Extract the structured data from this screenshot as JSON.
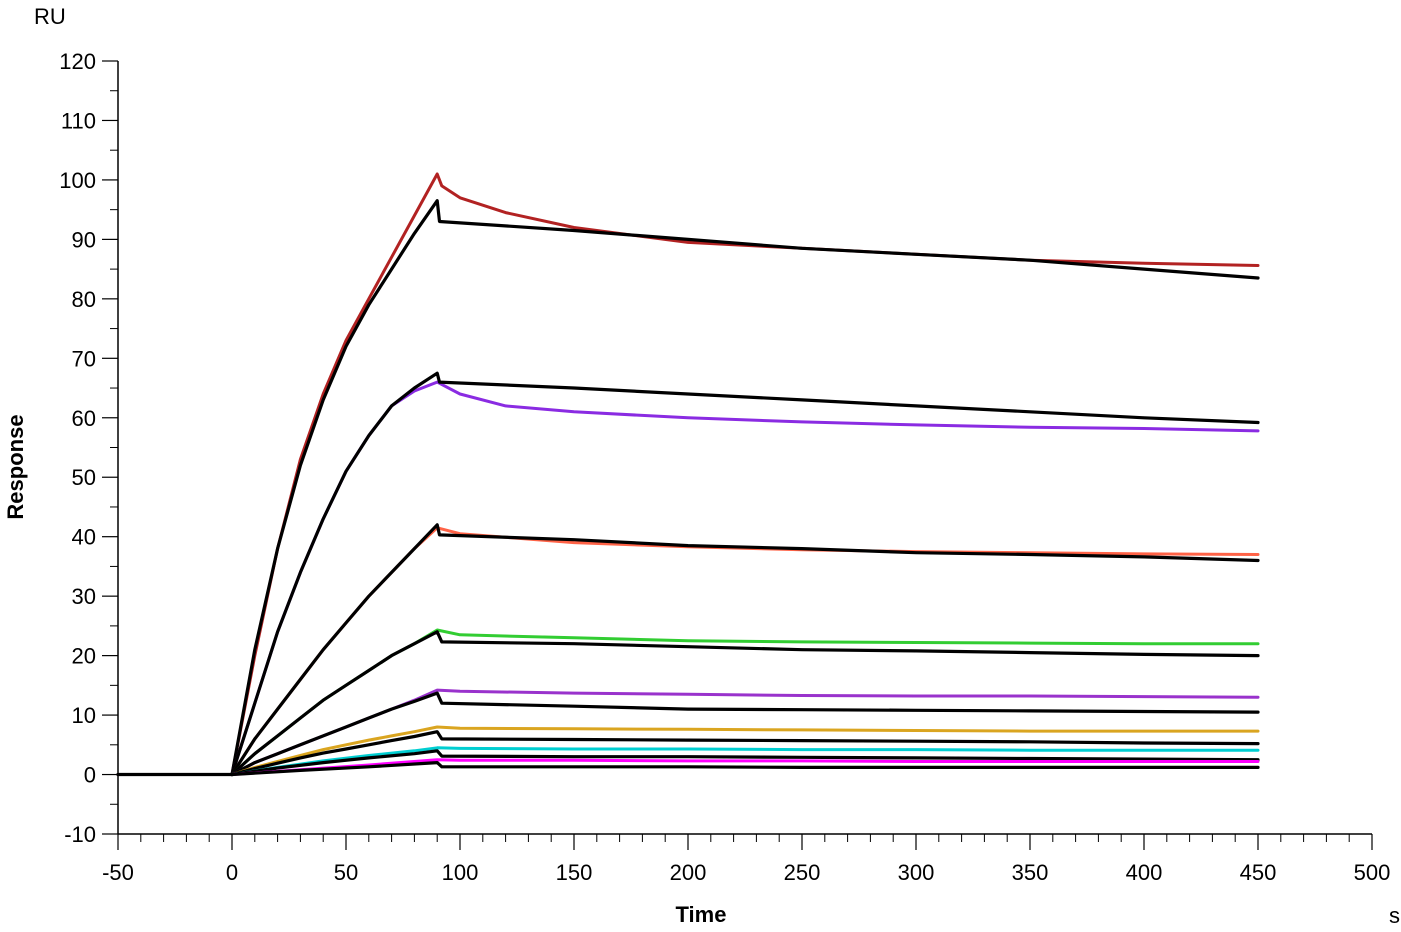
{
  "chart_data": {
    "type": "line",
    "title": "",
    "xlabel": "Time",
    "ylabel": "Response",
    "x_unit": "s",
    "y_unit": "RU",
    "xlim": [
      -50,
      500
    ],
    "ylim": [
      -10,
      120
    ],
    "x_ticks": [
      -50,
      0,
      50,
      100,
      150,
      200,
      250,
      300,
      350,
      400,
      450,
      500
    ],
    "y_ticks": [
      -10,
      0,
      10,
      20,
      30,
      40,
      50,
      60,
      70,
      80,
      90,
      100,
      110,
      120
    ],
    "grid": false,
    "legend": "none",
    "series": [
      {
        "color": "#b22222",
        "points": [
          [
            -50,
            0
          ],
          [
            0,
            0
          ],
          [
            10,
            20
          ],
          [
            20,
            38
          ],
          [
            30,
            53
          ],
          [
            40,
            64
          ],
          [
            50,
            73
          ],
          [
            60,
            80
          ],
          [
            70,
            87
          ],
          [
            80,
            94
          ],
          [
            90,
            101
          ],
          [
            92,
            99
          ],
          [
            100,
            97
          ],
          [
            120,
            94.5
          ],
          [
            150,
            92
          ],
          [
            200,
            89.5
          ],
          [
            250,
            88.5
          ],
          [
            300,
            87.5
          ],
          [
            350,
            86.5
          ],
          [
            400,
            86
          ],
          [
            450,
            85.6
          ]
        ]
      },
      {
        "color": "#000000",
        "points": [
          [
            0,
            0
          ],
          [
            10,
            21
          ],
          [
            20,
            38
          ],
          [
            30,
            52
          ],
          [
            40,
            63
          ],
          [
            50,
            72
          ],
          [
            60,
            79
          ],
          [
            70,
            85
          ],
          [
            80,
            91
          ],
          [
            90,
            96.5
          ],
          [
            91,
            93
          ],
          [
            150,
            91.5
          ],
          [
            200,
            90
          ],
          [
            250,
            88.5
          ],
          [
            300,
            87.5
          ],
          [
            350,
            86.5
          ],
          [
            400,
            85
          ],
          [
            450,
            83.5
          ]
        ]
      },
      {
        "color": "#8a2be2",
        "points": [
          [
            -50,
            0
          ],
          [
            0,
            0
          ],
          [
            10,
            12
          ],
          [
            20,
            24
          ],
          [
            30,
            34
          ],
          [
            40,
            43
          ],
          [
            50,
            51
          ],
          [
            60,
            57
          ],
          [
            70,
            62
          ],
          [
            80,
            64.5
          ],
          [
            90,
            66
          ],
          [
            100,
            64
          ],
          [
            120,
            62
          ],
          [
            150,
            61
          ],
          [
            200,
            60
          ],
          [
            250,
            59.3
          ],
          [
            300,
            58.8
          ],
          [
            350,
            58.4
          ],
          [
            400,
            58.2
          ],
          [
            450,
            57.8
          ]
        ]
      },
      {
        "color": "#000000",
        "points": [
          [
            0,
            0
          ],
          [
            10,
            12
          ],
          [
            20,
            24
          ],
          [
            30,
            34
          ],
          [
            40,
            43
          ],
          [
            50,
            51
          ],
          [
            60,
            57
          ],
          [
            70,
            62
          ],
          [
            80,
            65
          ],
          [
            90,
            67.5
          ],
          [
            91,
            66
          ],
          [
            150,
            65
          ],
          [
            200,
            64
          ],
          [
            250,
            63
          ],
          [
            300,
            62
          ],
          [
            350,
            61
          ],
          [
            400,
            60
          ],
          [
            450,
            59.2
          ]
        ]
      },
      {
        "color": "#ff6347",
        "points": [
          [
            -50,
            0
          ],
          [
            0,
            0
          ],
          [
            10,
            6
          ],
          [
            20,
            11
          ],
          [
            30,
            16
          ],
          [
            40,
            21
          ],
          [
            50,
            25.5
          ],
          [
            60,
            30
          ],
          [
            70,
            34
          ],
          [
            80,
            38
          ],
          [
            90,
            41.5
          ],
          [
            100,
            40.5
          ],
          [
            150,
            39
          ],
          [
            200,
            38.3
          ],
          [
            250,
            37.8
          ],
          [
            300,
            37.5
          ],
          [
            350,
            37.3
          ],
          [
            400,
            37.1
          ],
          [
            450,
            37
          ]
        ]
      },
      {
        "color": "#000000",
        "points": [
          [
            0,
            0
          ],
          [
            10,
            6
          ],
          [
            20,
            11
          ],
          [
            30,
            16
          ],
          [
            40,
            21
          ],
          [
            50,
            25.5
          ],
          [
            60,
            30
          ],
          [
            70,
            34
          ],
          [
            80,
            38
          ],
          [
            90,
            42
          ],
          [
            91,
            40.3
          ],
          [
            150,
            39.5
          ],
          [
            200,
            38.5
          ],
          [
            250,
            38
          ],
          [
            300,
            37.3
          ],
          [
            350,
            37
          ],
          [
            400,
            36.6
          ],
          [
            450,
            36
          ]
        ]
      },
      {
        "color": "#32cd32",
        "points": [
          [
            -50,
            0
          ],
          [
            0,
            0
          ],
          [
            10,
            3.5
          ],
          [
            20,
            6.5
          ],
          [
            30,
            9.5
          ],
          [
            40,
            12.5
          ],
          [
            50,
            15
          ],
          [
            60,
            17.5
          ],
          [
            70,
            20
          ],
          [
            80,
            22
          ],
          [
            90,
            24.3
          ],
          [
            100,
            23.5
          ],
          [
            150,
            23
          ],
          [
            200,
            22.5
          ],
          [
            250,
            22.3
          ],
          [
            300,
            22.2
          ],
          [
            350,
            22.1
          ],
          [
            400,
            22
          ],
          [
            450,
            22
          ]
        ]
      },
      {
        "color": "#000000",
        "points": [
          [
            0,
            0
          ],
          [
            10,
            3.5
          ],
          [
            20,
            6.5
          ],
          [
            30,
            9.5
          ],
          [
            40,
            12.5
          ],
          [
            50,
            15
          ],
          [
            60,
            17.5
          ],
          [
            70,
            20
          ],
          [
            80,
            22
          ],
          [
            90,
            24
          ],
          [
            92,
            22.3
          ],
          [
            150,
            22
          ],
          [
            200,
            21.5
          ],
          [
            250,
            21
          ],
          [
            300,
            20.8
          ],
          [
            350,
            20.5
          ],
          [
            400,
            20.2
          ],
          [
            450,
            20
          ]
        ]
      },
      {
        "color": "#9932cc",
        "points": [
          [
            -50,
            0
          ],
          [
            0,
            0
          ],
          [
            10,
            2
          ],
          [
            20,
            3.5
          ],
          [
            30,
            5
          ],
          [
            40,
            6.5
          ],
          [
            50,
            8
          ],
          [
            60,
            9.5
          ],
          [
            70,
            11
          ],
          [
            80,
            12.5
          ],
          [
            90,
            14.2
          ],
          [
            100,
            14
          ],
          [
            150,
            13.7
          ],
          [
            200,
            13.5
          ],
          [
            250,
            13.3
          ],
          [
            300,
            13.2
          ],
          [
            350,
            13.2
          ],
          [
            400,
            13.1
          ],
          [
            450,
            13
          ]
        ]
      },
      {
        "color": "#000000",
        "points": [
          [
            0,
            0
          ],
          [
            10,
            2
          ],
          [
            20,
            3.5
          ],
          [
            30,
            5
          ],
          [
            40,
            6.5
          ],
          [
            50,
            8
          ],
          [
            60,
            9.5
          ],
          [
            70,
            11
          ],
          [
            80,
            12.3
          ],
          [
            90,
            13.7
          ],
          [
            92,
            12
          ],
          [
            150,
            11.5
          ],
          [
            200,
            11
          ],
          [
            250,
            10.9
          ],
          [
            300,
            10.8
          ],
          [
            350,
            10.7
          ],
          [
            400,
            10.6
          ],
          [
            450,
            10.5
          ]
        ]
      },
      {
        "color": "#daa520",
        "points": [
          [
            -50,
            0
          ],
          [
            0,
            0
          ],
          [
            10,
            1.2
          ],
          [
            20,
            2.2
          ],
          [
            30,
            3.2
          ],
          [
            40,
            4.2
          ],
          [
            50,
            5
          ],
          [
            60,
            5.8
          ],
          [
            70,
            6.5
          ],
          [
            80,
            7.2
          ],
          [
            90,
            8
          ],
          [
            100,
            7.8
          ],
          [
            150,
            7.7
          ],
          [
            200,
            7.6
          ],
          [
            250,
            7.5
          ],
          [
            300,
            7.4
          ],
          [
            350,
            7.3
          ],
          [
            400,
            7.3
          ],
          [
            450,
            7.3
          ]
        ]
      },
      {
        "color": "#000000",
        "points": [
          [
            0,
            0
          ],
          [
            10,
            1
          ],
          [
            20,
            1.9
          ],
          [
            30,
            2.8
          ],
          [
            40,
            3.6
          ],
          [
            50,
            4.3
          ],
          [
            60,
            5
          ],
          [
            70,
            5.7
          ],
          [
            80,
            6.4
          ],
          [
            90,
            7.2
          ],
          [
            92,
            6
          ],
          [
            150,
            5.9
          ],
          [
            200,
            5.8
          ],
          [
            250,
            5.7
          ],
          [
            300,
            5.6
          ],
          [
            350,
            5.5
          ],
          [
            400,
            5.3
          ],
          [
            450,
            5.2
          ]
        ]
      },
      {
        "color": "#00ced1",
        "points": [
          [
            -50,
            0
          ],
          [
            0,
            0
          ],
          [
            20,
            1.2
          ],
          [
            40,
            2.3
          ],
          [
            60,
            3.2
          ],
          [
            80,
            4
          ],
          [
            90,
            4.5
          ],
          [
            100,
            4.4
          ],
          [
            150,
            4.3
          ],
          [
            200,
            4.3
          ],
          [
            250,
            4.2
          ],
          [
            300,
            4.2
          ],
          [
            350,
            4.1
          ],
          [
            400,
            4.1
          ],
          [
            450,
            4.1
          ]
        ]
      },
      {
        "color": "#000000",
        "points": [
          [
            0,
            0
          ],
          [
            20,
            1.1
          ],
          [
            40,
            2
          ],
          [
            60,
            2.8
          ],
          [
            80,
            3.5
          ],
          [
            90,
            4
          ],
          [
            92,
            3.1
          ],
          [
            150,
            3
          ],
          [
            200,
            3
          ],
          [
            250,
            2.9
          ],
          [
            300,
            2.8
          ],
          [
            350,
            2.7
          ],
          [
            400,
            2.6
          ],
          [
            450,
            2.5
          ]
        ]
      },
      {
        "color": "#ff00ff",
        "points": [
          [
            -50,
            0
          ],
          [
            0,
            0
          ],
          [
            30,
            0.8
          ],
          [
            60,
            1.6
          ],
          [
            90,
            2.5
          ],
          [
            100,
            2.4
          ],
          [
            150,
            2.4
          ],
          [
            200,
            2.3
          ],
          [
            250,
            2.3
          ],
          [
            300,
            2.2
          ],
          [
            350,
            2.2
          ],
          [
            400,
            2.2
          ],
          [
            450,
            2.2
          ]
        ]
      },
      {
        "color": "#000000",
        "points": [
          [
            -50,
            0
          ],
          [
            0,
            0
          ],
          [
            30,
            0.7
          ],
          [
            60,
            1.3
          ],
          [
            90,
            2
          ],
          [
            92,
            1.3
          ],
          [
            150,
            1.3
          ],
          [
            200,
            1.3
          ],
          [
            250,
            1.2
          ],
          [
            300,
            1.2
          ],
          [
            350,
            1.2
          ],
          [
            400,
            1.2
          ],
          [
            450,
            1.2
          ]
        ]
      }
    ]
  }
}
